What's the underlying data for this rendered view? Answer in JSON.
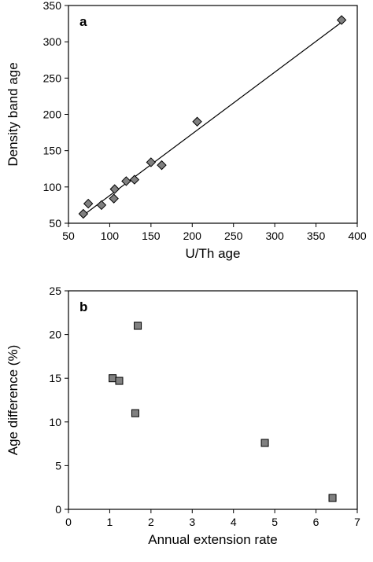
{
  "chart_data": [
    {
      "type": "scatter",
      "panel_label": "a",
      "xlabel": "U/Th age",
      "ylabel": "Density band age",
      "xlim": [
        50,
        400
      ],
      "ylim": [
        50,
        350
      ],
      "xticks": [
        50,
        100,
        150,
        200,
        250,
        300,
        350,
        400
      ],
      "yticks": [
        50,
        100,
        150,
        200,
        250,
        300,
        350
      ],
      "marker": "diamond",
      "marker_color": "#808080",
      "grid": false,
      "points": [
        {
          "x": 68,
          "y": 63
        },
        {
          "x": 74,
          "y": 77
        },
        {
          "x": 90,
          "y": 75
        },
        {
          "x": 105,
          "y": 84
        },
        {
          "x": 106,
          "y": 97
        },
        {
          "x": 120,
          "y": 108
        },
        {
          "x": 130,
          "y": 110
        },
        {
          "x": 150,
          "y": 134
        },
        {
          "x": 163,
          "y": 130
        },
        {
          "x": 206,
          "y": 190
        },
        {
          "x": 381,
          "y": 330
        }
      ],
      "trendline": {
        "x": [
          68,
          381
        ],
        "y": [
          61,
          327
        ]
      }
    },
    {
      "type": "scatter",
      "panel_label": "b",
      "xlabel": "Annual extension rate",
      "ylabel": "Age difference (%)",
      "xlim": [
        0,
        7
      ],
      "ylim": [
        0,
        25
      ],
      "xticks": [
        0,
        1,
        2,
        3,
        4,
        5,
        6,
        7
      ],
      "yticks": [
        0,
        5,
        10,
        15,
        20,
        25
      ],
      "marker": "square",
      "marker_color": "#808080",
      "grid": false,
      "points": [
        {
          "x": 1.07,
          "y": 15.0
        },
        {
          "x": 1.23,
          "y": 14.7
        },
        {
          "x": 1.62,
          "y": 11.0
        },
        {
          "x": 1.68,
          "y": 21.0
        },
        {
          "x": 4.76,
          "y": 7.6
        },
        {
          "x": 6.4,
          "y": 1.3
        }
      ]
    }
  ]
}
